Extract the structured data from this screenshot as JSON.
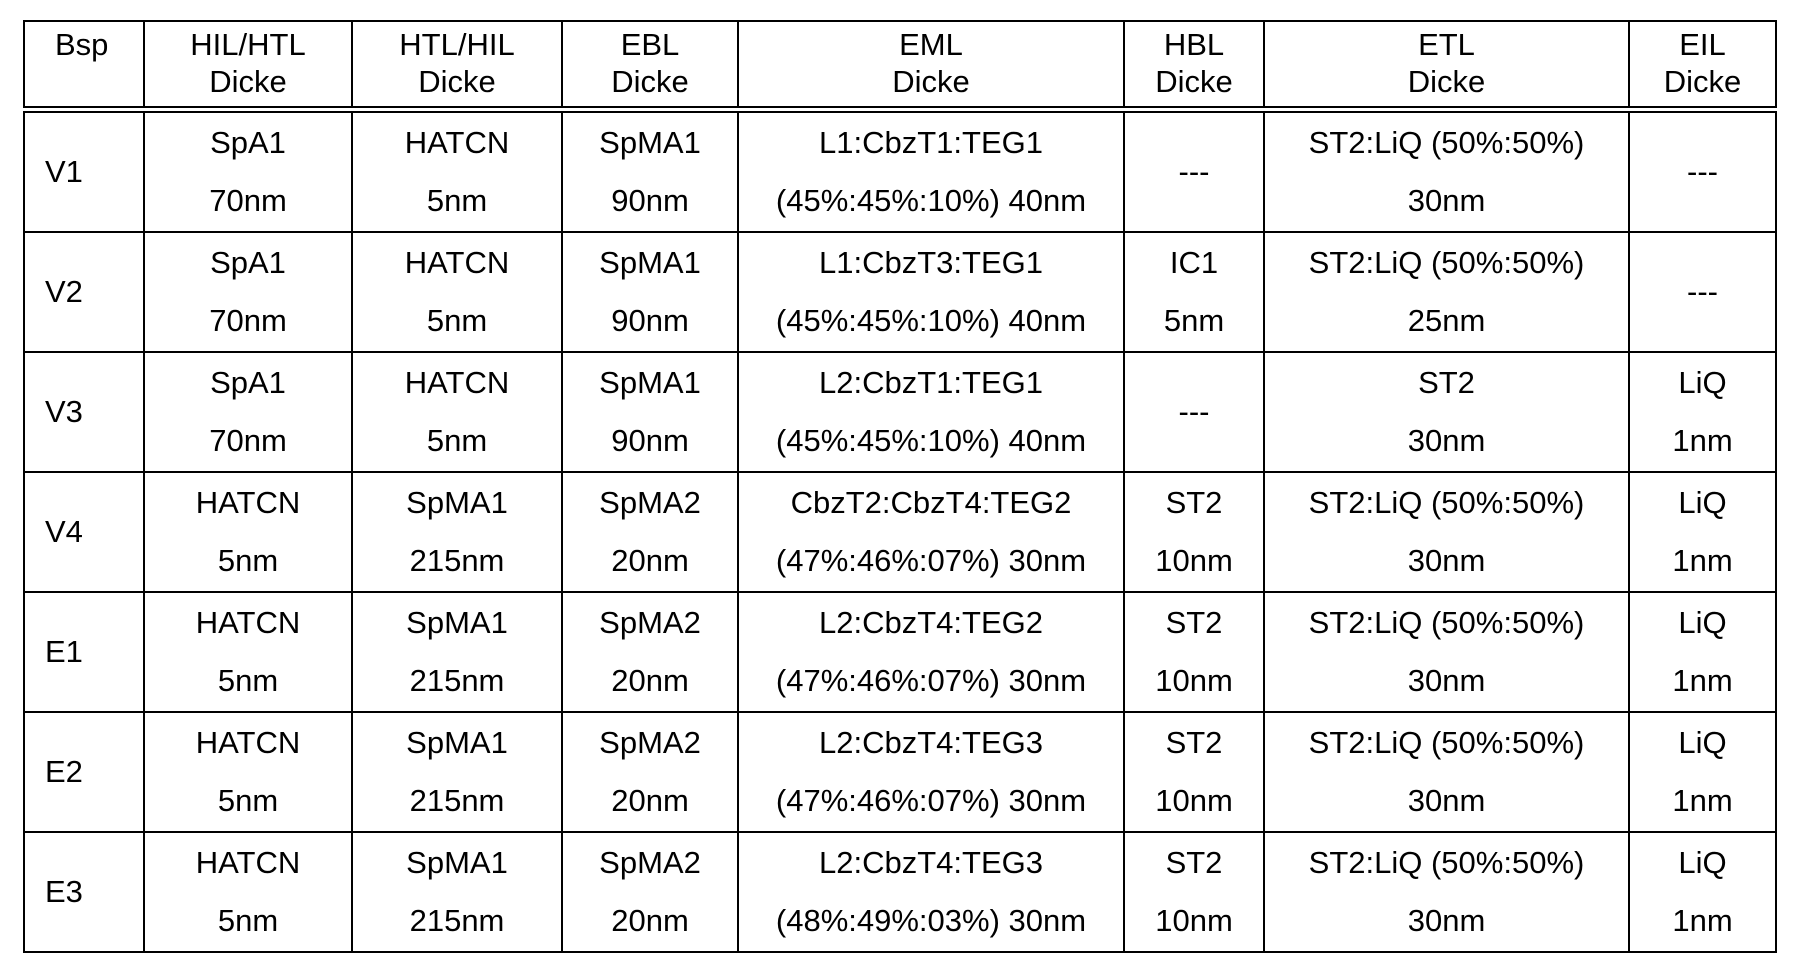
{
  "table": {
    "headers": [
      {
        "line1": "Bsp",
        "line2": ""
      },
      {
        "line1": "HIL/HTL",
        "line2": "Dicke"
      },
      {
        "line1": "HTL/HIL",
        "line2": "Dicke"
      },
      {
        "line1": "EBL",
        "line2": "Dicke"
      },
      {
        "line1": "EML",
        "line2": "Dicke"
      },
      {
        "line1": "HBL",
        "line2": "Dicke"
      },
      {
        "line1": "ETL",
        "line2": "Dicke"
      },
      {
        "line1": "EIL",
        "line2": "Dicke"
      }
    ],
    "rows": [
      {
        "bsp": "V1",
        "hil_htl": {
          "material": "SpA1",
          "thickness": "70nm"
        },
        "htl_hil": {
          "material": "HATCN",
          "thickness": "5nm"
        },
        "ebl": {
          "material": "SpMA1",
          "thickness": "90nm"
        },
        "eml": {
          "material": "L1:CbzT1:TEG1",
          "thickness": "(45%:45%:10%) 40nm"
        },
        "hbl": {
          "single": "---"
        },
        "etl": {
          "material": "ST2:LiQ (50%:50%)",
          "thickness": "30nm"
        },
        "eil": {
          "single": "---"
        }
      },
      {
        "bsp": "V2",
        "hil_htl": {
          "material": "SpA1",
          "thickness": "70nm"
        },
        "htl_hil": {
          "material": "HATCN",
          "thickness": "5nm"
        },
        "ebl": {
          "material": "SpMA1",
          "thickness": "90nm"
        },
        "eml": {
          "material": "L1:CbzT3:TEG1",
          "thickness": "(45%:45%:10%) 40nm"
        },
        "hbl": {
          "material": "IC1",
          "thickness": "5nm"
        },
        "etl": {
          "material": "ST2:LiQ (50%:50%)",
          "thickness": "25nm"
        },
        "eil": {
          "single": "---"
        }
      },
      {
        "bsp": "V3",
        "hil_htl": {
          "material": "SpA1",
          "thickness": "70nm"
        },
        "htl_hil": {
          "material": "HATCN",
          "thickness": "5nm"
        },
        "ebl": {
          "material": "SpMA1",
          "thickness": "90nm"
        },
        "eml": {
          "material": "L2:CbzT1:TEG1",
          "thickness": "(45%:45%:10%) 40nm"
        },
        "hbl": {
          "single": "---"
        },
        "etl": {
          "material": "ST2",
          "thickness": "30nm"
        },
        "eil": {
          "material": "LiQ",
          "thickness": "1nm"
        }
      },
      {
        "bsp": "V4",
        "hil_htl": {
          "material": "HATCN",
          "thickness": "5nm"
        },
        "htl_hil": {
          "material": "SpMA1",
          "thickness": "215nm"
        },
        "ebl": {
          "material": "SpMA2",
          "thickness": "20nm"
        },
        "eml": {
          "material": "CbzT2:CbzT4:TEG2",
          "thickness": "(47%:46%:07%) 30nm"
        },
        "hbl": {
          "material": "ST2",
          "thickness": "10nm"
        },
        "etl": {
          "material": "ST2:LiQ (50%:50%)",
          "thickness": "30nm"
        },
        "eil": {
          "material": "LiQ",
          "thickness": "1nm"
        }
      },
      {
        "bsp": "E1",
        "hil_htl": {
          "material": "HATCN",
          "thickness": "5nm"
        },
        "htl_hil": {
          "material": "SpMA1",
          "thickness": "215nm"
        },
        "ebl": {
          "material": "SpMA2",
          "thickness": "20nm"
        },
        "eml": {
          "material": "L2:CbzT4:TEG2",
          "thickness": "(47%:46%:07%) 30nm"
        },
        "hbl": {
          "material": "ST2",
          "thickness": "10nm"
        },
        "etl": {
          "material": "ST2:LiQ (50%:50%)",
          "thickness": "30nm"
        },
        "eil": {
          "material": "LiQ",
          "thickness": "1nm"
        }
      },
      {
        "bsp": "E2",
        "hil_htl": {
          "material": "HATCN",
          "thickness": "5nm"
        },
        "htl_hil": {
          "material": "SpMA1",
          "thickness": "215nm"
        },
        "ebl": {
          "material": "SpMA2",
          "thickness": "20nm"
        },
        "eml": {
          "material": "L2:CbzT4:TEG3",
          "thickness": "(47%:46%:07%) 30nm"
        },
        "hbl": {
          "material": "ST2",
          "thickness": "10nm"
        },
        "etl": {
          "material": "ST2:LiQ (50%:50%)",
          "thickness": "30nm"
        },
        "eil": {
          "material": "LiQ",
          "thickness": "1nm"
        }
      },
      {
        "bsp": "E3",
        "hil_htl": {
          "material": "HATCN",
          "thickness": "5nm"
        },
        "htl_hil": {
          "material": "SpMA1",
          "thickness": "215nm"
        },
        "ebl": {
          "material": "SpMA2",
          "thickness": "20nm"
        },
        "eml": {
          "material": "L2:CbzT4:TEG3",
          "thickness": "(48%:49%:03%) 30nm"
        },
        "hbl": {
          "material": "ST2",
          "thickness": "10nm"
        },
        "etl": {
          "material": "ST2:LiQ (50%:50%)",
          "thickness": "30nm"
        },
        "eil": {
          "material": "LiQ",
          "thickness": "1nm"
        }
      }
    ]
  }
}
